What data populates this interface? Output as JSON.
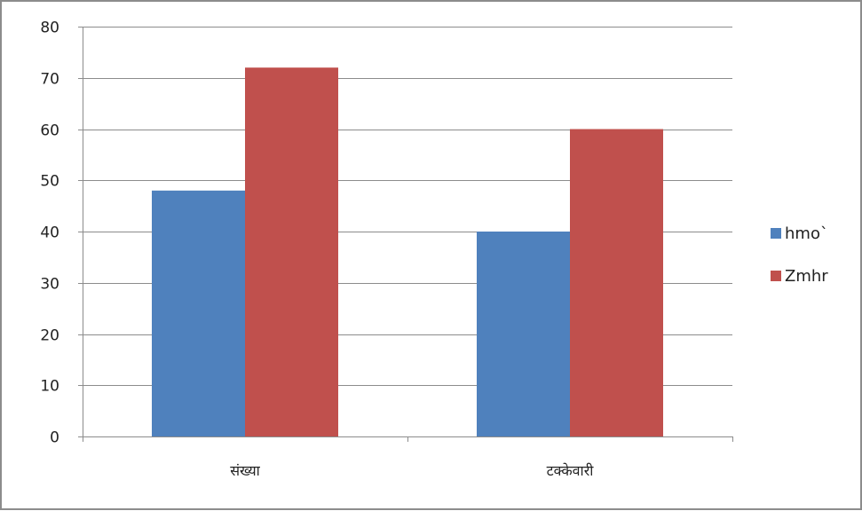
{
  "chart_data": {
    "type": "bar",
    "categories": [
      "संख्या",
      "टक्केवारी"
    ],
    "series": [
      {
        "name": "hmo`",
        "values": [
          48,
          40
        ],
        "color": "#4f81bd"
      },
      {
        "name": "Zmhr",
        "values": [
          72,
          60
        ],
        "color": "#c0504d"
      }
    ],
    "title": "",
    "xlabel": "",
    "ylabel": "",
    "ylim": [
      0,
      80
    ],
    "yticks": [
      0,
      10,
      20,
      30,
      40,
      50,
      60,
      70,
      80
    ],
    "grid": true,
    "legend_position": "right"
  }
}
